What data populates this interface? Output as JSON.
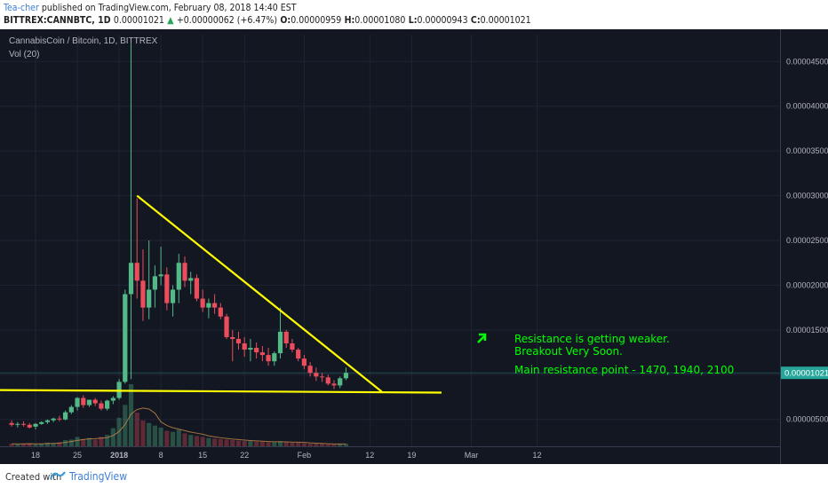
{
  "header": {
    "author": "Tea-cher",
    "published_text": "published on TradingView.com, February 08, 2018 14:40 EST",
    "symbol": "BITTREX:CANNBTC, 1D",
    "last": "0.00001021",
    "change_arrow": "▲",
    "change": "+0.00000062 (+6.47%)",
    "o_label": "O:",
    "o_value": "0.00000959",
    "h_label": "H:",
    "h_value": "0.00001080",
    "l_label": "L:",
    "l_value": "0.00000943",
    "c_label": "C:",
    "c_value": "0.00001021"
  },
  "chart": {
    "instrument_label": "CannabisCoin / Bitcoin, 1D, BITTREX",
    "volume_label": "Vol (20)",
    "price_tag": "0.00001021",
    "annotations": [
      "Resistance is getting weaker.",
      "Breakout Very Soon.",
      "Main resistance point - 1470, 1940, 2100"
    ],
    "arrow_icon": "up-right-arrow-icon"
  },
  "chart_data": {
    "type": "candlestick",
    "y_ticks": [
      "0.00000500",
      "0.00001000",
      "0.00001500",
      "0.00002000",
      "0.00002500",
      "0.00003000",
      "0.00003500",
      "0.00004000",
      "0.00004500"
    ],
    "ylim": [
      1.8e-06,
      4.9e-06
    ],
    "x_ticks": [
      {
        "label": "18",
        "date": "2017-12-18"
      },
      {
        "label": "25",
        "date": "2017-12-25"
      },
      {
        "label": "2018",
        "date": "2018-01-01"
      },
      {
        "label": "8",
        "date": "2018-01-08"
      },
      {
        "label": "15",
        "date": "2018-01-15"
      },
      {
        "label": "22",
        "date": "2018-01-22"
      },
      {
        "label": "Feb",
        "date": "2018-02-01"
      },
      {
        "label": "12",
        "date": "2018-02-12"
      },
      {
        "label": "19",
        "date": "2018-02-19"
      },
      {
        "label": "Mar",
        "date": "2018-03-01"
      },
      {
        "label": "12",
        "date": "2018-03-12"
      }
    ],
    "candles": [
      {
        "date": "2017-12-14",
        "o": 4.6e-06,
        "h": 4.9e-06,
        "l": 4.2e-06,
        "c": 4.4e-06
      },
      {
        "date": "2017-12-15",
        "o": 4.4e-06,
        "h": 4.7e-06,
        "l": 4.1e-06,
        "c": 4.5e-06
      },
      {
        "date": "2017-12-16",
        "o": 4.5e-06,
        "h": 4.8e-06,
        "l": 4.2e-06,
        "c": 4.4e-06
      },
      {
        "date": "2017-12-17",
        "o": 4.4e-06,
        "h": 4.6e-06,
        "l": 4e-06,
        "c": 4.1e-06
      },
      {
        "date": "2017-12-18",
        "o": 4.2e-06,
        "h": 4.6e-06,
        "l": 3.9e-06,
        "c": 4.5e-06
      },
      {
        "date": "2017-12-19",
        "o": 4.5e-06,
        "h": 4.8e-06,
        "l": 4.4e-06,
        "c": 4.7e-06
      },
      {
        "date": "2017-12-20",
        "o": 4.7e-06,
        "h": 5e-06,
        "l": 4.5e-06,
        "c": 4.9e-06
      },
      {
        "date": "2017-12-21",
        "o": 4.9e-06,
        "h": 5.2e-06,
        "l": 4.7e-06,
        "c": 5.1e-06
      },
      {
        "date": "2017-12-22",
        "o": 5.1e-06,
        "h": 5.4e-06,
        "l": 4.8e-06,
        "c": 5e-06
      },
      {
        "date": "2017-12-23",
        "o": 5e-06,
        "h": 6e-06,
        "l": 4.9e-06,
        "c": 5.8e-06
      },
      {
        "date": "2017-12-24",
        "o": 5.8e-06,
        "h": 6.6e-06,
        "l": 5.6e-06,
        "c": 6.4e-06
      },
      {
        "date": "2017-12-25",
        "o": 6.4e-06,
        "h": 7.5e-06,
        "l": 6e-06,
        "c": 7.4e-06
      },
      {
        "date": "2017-12-26",
        "o": 7.4e-06,
        "h": 7.7e-06,
        "l": 6.3e-06,
        "c": 6.6e-06
      },
      {
        "date": "2017-12-27",
        "o": 6.6e-06,
        "h": 7.2e-06,
        "l": 6.4e-06,
        "c": 7.2e-06
      },
      {
        "date": "2017-12-28",
        "o": 7.2e-06,
        "h": 7.4e-06,
        "l": 6.5e-06,
        "c": 6.8e-06
      },
      {
        "date": "2017-12-29",
        "o": 6.8e-06,
        "h": 7.1e-06,
        "l": 6e-06,
        "c": 6.2e-06
      },
      {
        "date": "2017-12-30",
        "o": 6.2e-06,
        "h": 7.2e-06,
        "l": 6e-06,
        "c": 7.1e-06
      },
      {
        "date": "2017-12-31",
        "o": 7.1e-06,
        "h": 7.6e-06,
        "l": 6.7e-06,
        "c": 7.4e-06
      },
      {
        "date": "2018-01-01",
        "o": 7.4e-06,
        "h": 9.5e-06,
        "l": 7.2e-06,
        "c": 9.2e-06
      },
      {
        "date": "2018-01-02",
        "o": 9.2e-06,
        "h": 1.95e-05,
        "l": 9e-06,
        "c": 1.9e-05
      },
      {
        "date": "2018-01-03",
        "o": 1.9e-05,
        "h": 4.7e-05,
        "l": 9.5e-06,
        "c": 2.25e-05
      },
      {
        "date": "2018-01-04",
        "o": 2.25e-05,
        "h": 2.97e-05,
        "l": 1.85e-05,
        "c": 2.05e-05
      },
      {
        "date": "2018-01-05",
        "o": 2.05e-05,
        "h": 2.4e-05,
        "l": 1.6e-05,
        "c": 1.75e-05
      },
      {
        "date": "2018-01-06",
        "o": 1.75e-05,
        "h": 2.5e-05,
        "l": 1.62e-05,
        "c": 1.95e-05
      },
      {
        "date": "2018-01-07",
        "o": 1.95e-05,
        "h": 2.22e-05,
        "l": 1.75e-05,
        "c": 2.1e-05
      },
      {
        "date": "2018-01-08",
        "o": 2.1e-05,
        "h": 2.43e-05,
        "l": 2e-05,
        "c": 2.12e-05
      },
      {
        "date": "2018-01-09",
        "o": 2.12e-05,
        "h": 2.2e-05,
        "l": 1.72e-05,
        "c": 1.8e-05
      },
      {
        "date": "2018-01-10",
        "o": 1.8e-05,
        "h": 2e-05,
        "l": 1.65e-05,
        "c": 1.95e-05
      },
      {
        "date": "2018-01-11",
        "o": 1.95e-05,
        "h": 2.35e-05,
        "l": 1.8e-05,
        "c": 2.25e-05
      },
      {
        "date": "2018-01-12",
        "o": 2.25e-05,
        "h": 2.32e-05,
        "l": 1.98e-05,
        "c": 2.05e-05
      },
      {
        "date": "2018-01-13",
        "o": 2.05e-05,
        "h": 2.15e-05,
        "l": 1.9e-05,
        "c": 2.08e-05
      },
      {
        "date": "2018-01-14",
        "o": 2.08e-05,
        "h": 2.12e-05,
        "l": 1.82e-05,
        "c": 1.85e-05
      },
      {
        "date": "2018-01-15",
        "o": 1.85e-05,
        "h": 1.95e-05,
        "l": 1.7e-05,
        "c": 1.75e-05
      },
      {
        "date": "2018-01-16",
        "o": 1.75e-05,
        "h": 1.85e-05,
        "l": 1.63e-05,
        "c": 1.8e-05
      },
      {
        "date": "2018-01-17",
        "o": 1.8e-05,
        "h": 1.9e-05,
        "l": 1.68e-05,
        "c": 1.75e-05
      },
      {
        "date": "2018-01-18",
        "o": 1.75e-05,
        "h": 1.8e-05,
        "l": 1.62e-05,
        "c": 1.65e-05
      },
      {
        "date": "2018-01-19",
        "o": 1.65e-05,
        "h": 1.68e-05,
        "l": 1.4e-05,
        "c": 1.42e-05
      },
      {
        "date": "2018-01-20",
        "o": 1.42e-05,
        "h": 1.5e-05,
        "l": 1.15e-05,
        "c": 1.4e-05
      },
      {
        "date": "2018-01-21",
        "o": 1.4e-05,
        "h": 1.48e-05,
        "l": 1.28e-05,
        "c": 1.35e-05
      },
      {
        "date": "2018-01-22",
        "o": 1.35e-05,
        "h": 1.42e-05,
        "l": 1.2e-05,
        "c": 1.28e-05
      },
      {
        "date": "2018-01-23",
        "o": 1.28e-05,
        "h": 1.4e-05,
        "l": 1.15e-05,
        "c": 1.3e-05
      },
      {
        "date": "2018-01-24",
        "o": 1.3e-05,
        "h": 1.36e-05,
        "l": 1.18e-05,
        "c": 1.25e-05
      },
      {
        "date": "2018-01-25",
        "o": 1.25e-05,
        "h": 1.32e-05,
        "l": 1.15e-05,
        "c": 1.22e-05
      },
      {
        "date": "2018-01-26",
        "o": 1.22e-05,
        "h": 1.3e-05,
        "l": 1.1e-05,
        "c": 1.15e-05
      },
      {
        "date": "2018-01-27",
        "o": 1.15e-05,
        "h": 1.26e-05,
        "l": 1.1e-05,
        "c": 1.24e-05
      },
      {
        "date": "2018-01-28",
        "o": 1.24e-05,
        "h": 1.75e-05,
        "l": 1.18e-05,
        "c": 1.48e-05
      },
      {
        "date": "2018-01-29",
        "o": 1.48e-05,
        "h": 1.5e-05,
        "l": 1.3e-05,
        "c": 1.35e-05
      },
      {
        "date": "2018-01-30",
        "o": 1.35e-05,
        "h": 1.4e-05,
        "l": 1.25e-05,
        "c": 1.28e-05
      },
      {
        "date": "2018-01-31",
        "o": 1.28e-05,
        "h": 1.3e-05,
        "l": 1.15e-05,
        "c": 1.18e-05
      },
      {
        "date": "2018-02-01",
        "o": 1.18e-05,
        "h": 1.22e-05,
        "l": 1.06e-05,
        "c": 1.1e-05
      },
      {
        "date": "2018-02-02",
        "o": 1.1e-05,
        "h": 1.14e-05,
        "l": 9.8e-06,
        "c": 1.02e-05
      },
      {
        "date": "2018-02-03",
        "o": 1.02e-05,
        "h": 1.08e-05,
        "l": 9.3e-06,
        "c": 9.8e-06
      },
      {
        "date": "2018-02-04",
        "o": 9.8e-06,
        "h": 1.02e-05,
        "l": 9.2e-06,
        "c": 9.7e-06
      },
      {
        "date": "2018-02-05",
        "o": 9.7e-06,
        "h": 1e-05,
        "l": 8.8e-06,
        "c": 9e-06
      },
      {
        "date": "2018-02-06",
        "o": 9e-06,
        "h": 9.4e-06,
        "l": 8.4e-06,
        "c": 8.8e-06
      },
      {
        "date": "2018-02-07",
        "o": 8.8e-06,
        "h": 9.8e-06,
        "l": 8.5e-06,
        "c": 9.6e-06
      },
      {
        "date": "2018-02-08",
        "o": 9.6e-06,
        "h": 1.08e-05,
        "l": 9.4e-06,
        "c": 1.02e-05
      }
    ],
    "volumes": [
      0.5,
      0.4,
      0.5,
      0.6,
      0.4,
      0.5,
      0.7,
      0.6,
      0.8,
      1.2,
      1.3,
      1.8,
      1.4,
      1.6,
      1.3,
      1.8,
      2.2,
      3.5,
      5.5,
      8.0,
      12.0,
      6.5,
      5.0,
      4.5,
      4.0,
      3.6,
      3.0,
      2.8,
      3.2,
      2.5,
      2.2,
      2.0,
      1.8,
      1.6,
      1.5,
      1.4,
      1.3,
      1.2,
      1.1,
      1.0,
      1.0,
      0.9,
      0.9,
      0.8,
      0.8,
      1.0,
      0.8,
      0.7,
      0.7,
      0.6,
      0.5,
      0.5,
      0.5,
      0.4,
      0.4,
      0.5,
      0.5
    ],
    "lines": [
      {
        "name": "descending-resistance",
        "from": {
          "date": "2018-01-04",
          "y": 3e-05
        },
        "to": {
          "date": "2018-02-14",
          "y": 8.1e-06
        }
      },
      {
        "name": "horizontal-support",
        "from": {
          "date": "2017-12-08",
          "y": 8.3e-06
        },
        "to": {
          "date": "2018-02-24",
          "y": 8e-06
        }
      }
    ],
    "current_price": 1.021e-05,
    "colors": {
      "background": "#131722",
      "up": "#53b987",
      "down": "#eb4d5c",
      "trendline": "#ffff00",
      "annotation": "#00ff00",
      "axis_text": "#b2b5be",
      "price_tag": "#26a69a"
    }
  }
}
